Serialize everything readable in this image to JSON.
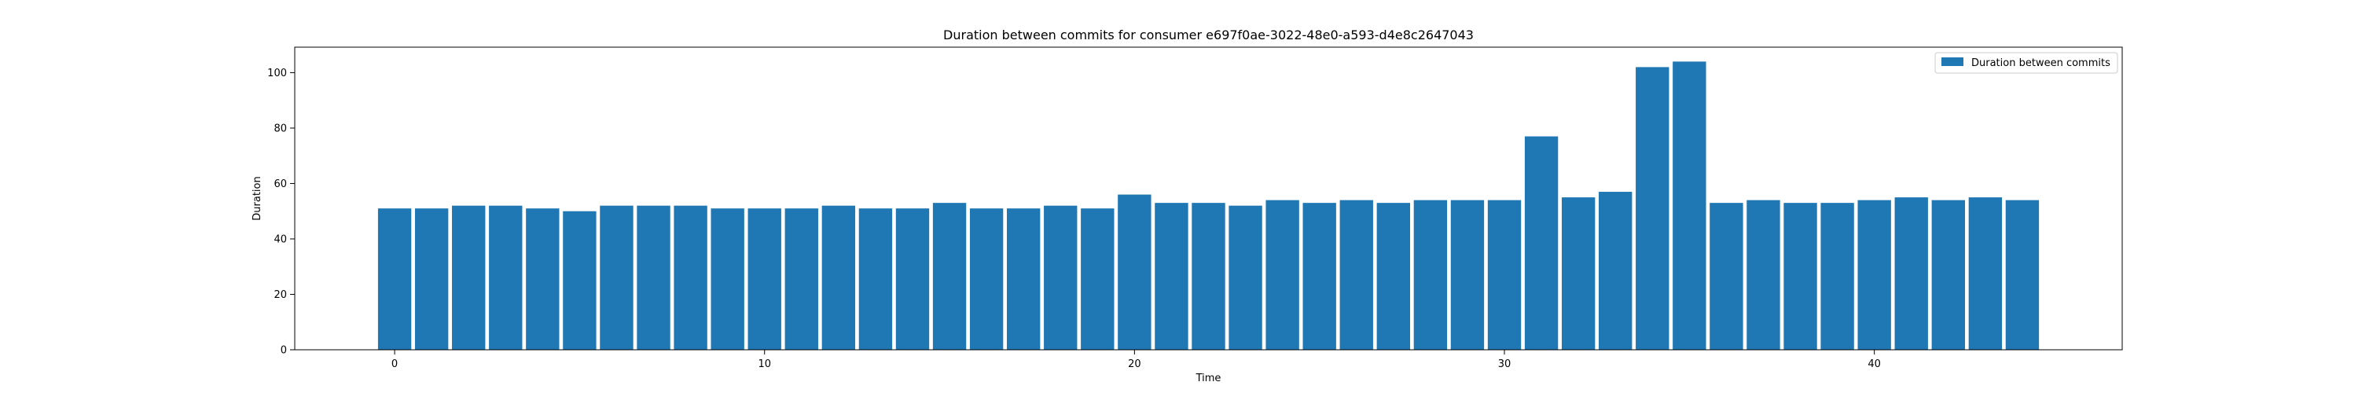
{
  "chart_data": {
    "type": "bar",
    "title": "Duration between commits for consumer e697f0ae-3022-48e0-a593-d4e8c2647043",
    "xlabel": "Time",
    "ylabel": "Duration",
    "x": [
      0,
      1,
      2,
      3,
      4,
      5,
      6,
      7,
      8,
      9,
      10,
      11,
      12,
      13,
      14,
      15,
      16,
      17,
      18,
      19,
      20,
      21,
      22,
      23,
      24,
      25,
      26,
      27,
      28,
      29,
      30,
      31,
      32,
      33,
      34,
      35,
      36,
      37,
      38,
      39,
      40,
      41,
      42,
      43,
      44
    ],
    "series": [
      {
        "name": "Duration between commits",
        "color": "#1f77b4",
        "values": [
          51,
          51,
          52,
          52,
          51,
          50,
          52,
          52,
          52,
          51,
          51,
          51,
          52,
          51,
          51,
          53,
          51,
          51,
          52,
          51,
          56,
          53,
          53,
          52,
          54,
          53,
          54,
          53,
          54,
          54,
          54,
          77,
          55,
          57,
          102,
          104,
          53,
          54,
          53,
          53,
          54,
          55,
          54,
          55,
          54
        ]
      }
    ],
    "xlim": [
      -2.7,
      46.7
    ],
    "ylim": [
      0,
      109.2
    ],
    "xticks": [
      0,
      10,
      20,
      30,
      40
    ],
    "xtick_labels": [
      "0",
      "10",
      "20",
      "30",
      "40"
    ],
    "yticks": [
      0,
      20,
      40,
      60,
      80,
      100
    ],
    "ytick_labels": [
      "0",
      "20",
      "40",
      "60",
      "80",
      "100"
    ],
    "legend_position": "top-right",
    "grid": false
  }
}
